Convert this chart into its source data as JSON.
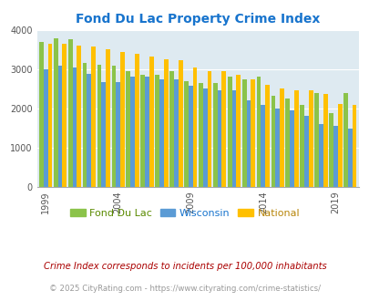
{
  "title": "Fond Du Lac Property Crime Index",
  "title_color": "#1874CD",
  "years": [
    1999,
    2000,
    2001,
    2002,
    2003,
    2004,
    2005,
    2006,
    2007,
    2008,
    2009,
    2010,
    2011,
    2012,
    2013,
    2014,
    2015,
    2016,
    2017,
    2018,
    2019,
    2020
  ],
  "fond_du_lac": [
    3700,
    3800,
    3760,
    3150,
    3120,
    3100,
    2950,
    2850,
    2850,
    2960,
    2700,
    2650,
    2650,
    2820,
    2750,
    2820,
    2330,
    2250,
    2100,
    2400,
    1880,
    2390
  ],
  "wisconsin": [
    3000,
    3100,
    3050,
    2880,
    2660,
    2660,
    2800,
    2800,
    2750,
    2750,
    2580,
    2500,
    2470,
    2460,
    2200,
    2080,
    2000,
    1950,
    1800,
    1600,
    1560,
    1480
  ],
  "national": [
    3650,
    3640,
    3610,
    3590,
    3510,
    3450,
    3390,
    3330,
    3260,
    3230,
    3040,
    2950,
    2940,
    2860,
    2730,
    2600,
    2500,
    2470,
    2460,
    2370,
    2110,
    2080
  ],
  "color_fdl": "#8bc34a",
  "color_wi": "#5b9bd5",
  "color_nat": "#ffc000",
  "bg_color": "#deeaf1",
  "ylim": [
    0,
    4000
  ],
  "yticks": [
    0,
    1000,
    2000,
    3000,
    4000
  ],
  "xlabel_ticks": [
    1999,
    2004,
    2009,
    2014,
    2019
  ],
  "legend_labels": [
    "Fond Du Lac",
    "Wisconsin",
    "National"
  ],
  "legend_text_colors": [
    "#5a8a00",
    "#1874CD",
    "#b8860b"
  ],
  "footnote1": "Crime Index corresponds to incidents per 100,000 inhabitants",
  "footnote2": "© 2025 CityRating.com - https://www.cityrating.com/crime-statistics/",
  "footnote1_color": "#aa0000",
  "footnote2_color": "#999999",
  "figsize": [
    4.06,
    3.3
  ],
  "dpi": 100
}
